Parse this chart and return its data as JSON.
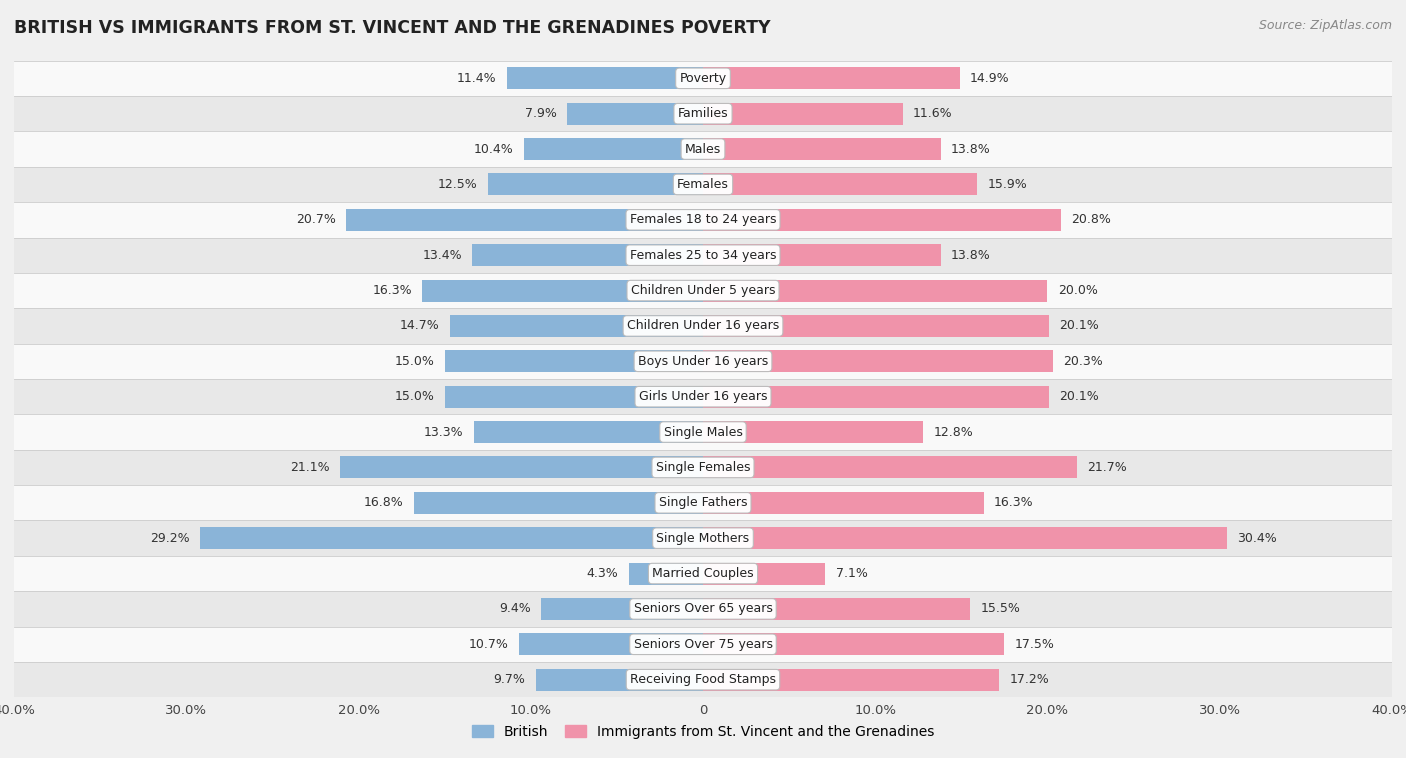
{
  "title": "BRITISH VS IMMIGRANTS FROM ST. VINCENT AND THE GRENADINES POVERTY",
  "source": "Source: ZipAtlas.com",
  "categories": [
    "Poverty",
    "Families",
    "Males",
    "Females",
    "Females 18 to 24 years",
    "Females 25 to 34 years",
    "Children Under 5 years",
    "Children Under 16 years",
    "Boys Under 16 years",
    "Girls Under 16 years",
    "Single Males",
    "Single Females",
    "Single Fathers",
    "Single Mothers",
    "Married Couples",
    "Seniors Over 65 years",
    "Seniors Over 75 years",
    "Receiving Food Stamps"
  ],
  "british_values": [
    11.4,
    7.9,
    10.4,
    12.5,
    20.7,
    13.4,
    16.3,
    14.7,
    15.0,
    15.0,
    13.3,
    21.1,
    16.8,
    29.2,
    4.3,
    9.4,
    10.7,
    9.7
  ],
  "immigrant_values": [
    14.9,
    11.6,
    13.8,
    15.9,
    20.8,
    13.8,
    20.0,
    20.1,
    20.3,
    20.1,
    12.8,
    21.7,
    16.3,
    30.4,
    7.1,
    15.5,
    17.5,
    17.2
  ],
  "british_color": "#8ab4d8",
  "immigrant_color": "#f093aa",
  "background_color": "#f0f0f0",
  "row_bg_even": "#f9f9f9",
  "row_bg_odd": "#e8e8e8",
  "axis_max": 40.0,
  "bar_height": 0.62,
  "legend_british": "British",
  "legend_immigrant": "Immigrants from St. Vincent and the Grenadines",
  "label_fontsize": 9.0,
  "cat_fontsize": 9.0,
  "title_fontsize": 12.5
}
